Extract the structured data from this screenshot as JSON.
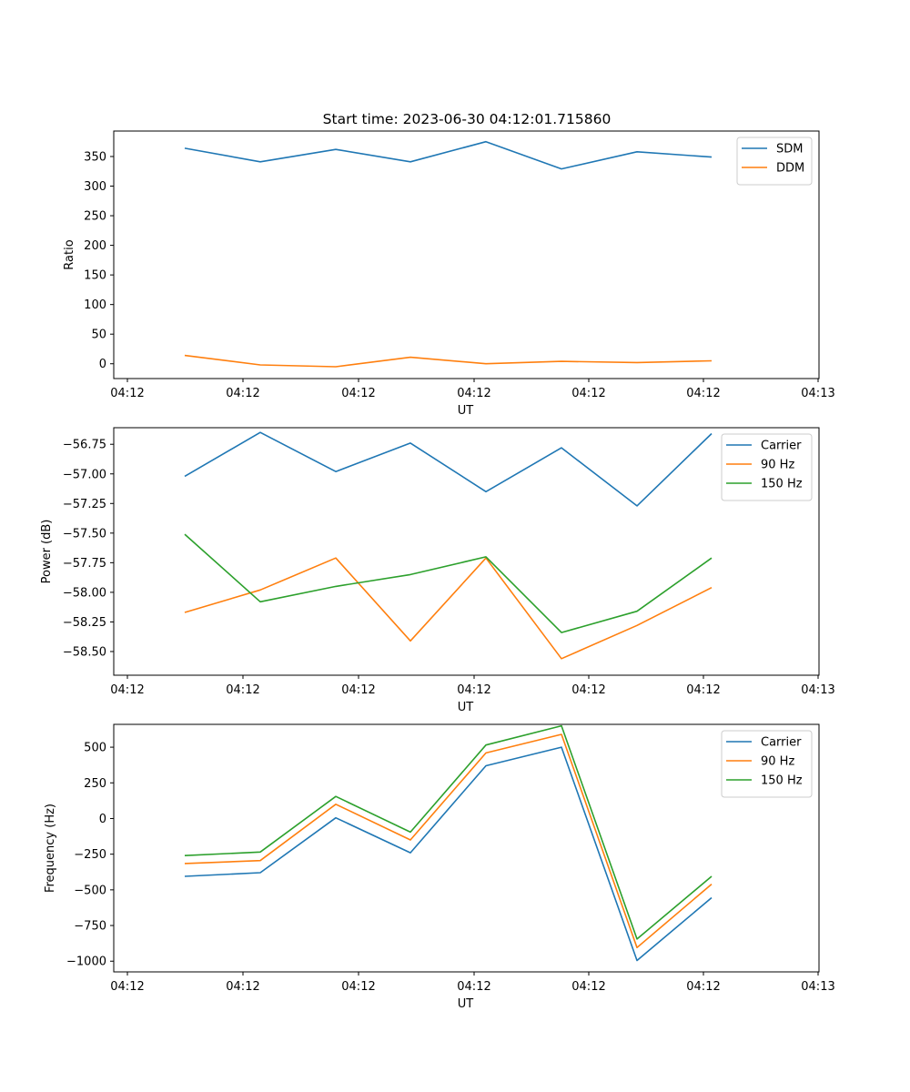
{
  "title": "Start time: 2023-06-30 04:12:01.715860",
  "chart_data": [
    {
      "type": "line",
      "title": "Start time: 2023-06-30 04:12:01.715860",
      "xlabel": "UT",
      "ylabel": "Ratio",
      "x_tick_labels": [
        "04:12",
        "04:12",
        "04:12",
        "04:12",
        "04:12",
        "04:12",
        "04:12",
        "04:13"
      ],
      "x": [
        1,
        2,
        3,
        4,
        5,
        6,
        7,
        8
      ],
      "xlim": [
        -0.75,
        8.45
      ],
      "ylim": [
        -25,
        393
      ],
      "yticks": [
        0,
        50,
        100,
        150,
        200,
        250,
        300,
        350
      ],
      "y_tick_labels": [
        "0",
        "50",
        "100",
        "150",
        "200",
        "250",
        "300",
        "350"
      ],
      "legend": "top-right",
      "series": [
        {
          "name": "SDM",
          "color": "#1f77b4",
          "values": [
            364,
            341,
            362,
            341,
            375,
            329,
            358,
            349
          ]
        },
        {
          "name": "DDM",
          "color": "#ff7f0e",
          "values": [
            14,
            -2,
            -5,
            11,
            0,
            4,
            2,
            5
          ]
        }
      ]
    },
    {
      "type": "line",
      "xlabel": "UT",
      "ylabel": "Power (dB)",
      "x_tick_labels": [
        "04:12",
        "04:12",
        "04:12",
        "04:12",
        "04:12",
        "04:12",
        "04:12",
        "04:13"
      ],
      "x": [
        1,
        2,
        3,
        4,
        5,
        6,
        7,
        8
      ],
      "xlim": [
        -0.75,
        8.45
      ],
      "ylim": [
        -58.7,
        -56.61
      ],
      "yticks": [
        -58.5,
        -58.25,
        -58.0,
        -57.75,
        -57.5,
        -57.25,
        -57.0,
        -56.75
      ],
      "y_tick_labels": [
        "−58.50",
        "−58.25",
        "−58.00",
        "−57.75",
        "−57.50",
        "−57.25",
        "−57.00",
        "−56.75"
      ],
      "legend": "top-right",
      "series": [
        {
          "name": "Carrier",
          "color": "#1f77b4",
          "values": [
            -57.02,
            -56.65,
            -56.98,
            -56.74,
            -57.15,
            -56.78,
            -57.27,
            -56.66
          ]
        },
        {
          "name": "90 Hz",
          "color": "#ff7f0e",
          "values": [
            -58.17,
            -57.98,
            -57.71,
            -58.41,
            -57.71,
            -58.56,
            -58.28,
            -57.96
          ]
        },
        {
          "name": "150 Hz",
          "color": "#2ca02c",
          "values": [
            -57.51,
            -58.08,
            -57.95,
            -57.85,
            -57.7,
            -58.34,
            -58.16,
            -57.71
          ]
        }
      ]
    },
    {
      "type": "line",
      "xlabel": "UT",
      "ylabel": "Frequency (Hz)",
      "x_tick_labels": [
        "04:12",
        "04:12",
        "04:12",
        "04:12",
        "04:12",
        "04:12",
        "04:12",
        "04:13"
      ],
      "x": [
        1,
        2,
        3,
        4,
        5,
        6,
        7,
        8
      ],
      "xlim": [
        -0.75,
        8.45
      ],
      "ylim": [
        -1075,
        660
      ],
      "yticks": [
        -1000,
        -750,
        -500,
        -250,
        0,
        250,
        500
      ],
      "y_tick_labels": [
        "−1000",
        "−750",
        "−500",
        "−250",
        "0",
        "250",
        "500"
      ],
      "legend": "top-right",
      "series": [
        {
          "name": "Carrier",
          "color": "#1f77b4",
          "values": [
            -405,
            -380,
            5,
            -240,
            370,
            500,
            -995,
            -555
          ]
        },
        {
          "name": "90 Hz",
          "color": "#ff7f0e",
          "values": [
            -315,
            -295,
            100,
            -150,
            460,
            590,
            -905,
            -460
          ]
        },
        {
          "name": "150 Hz",
          "color": "#2ca02c",
          "values": [
            -260,
            -235,
            155,
            -95,
            515,
            650,
            -845,
            -405
          ]
        }
      ]
    }
  ]
}
